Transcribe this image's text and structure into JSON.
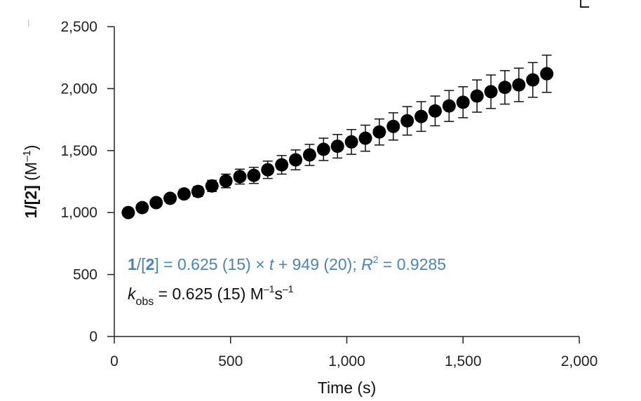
{
  "chart_data": {
    "type": "scatter",
    "xlabel": "Time (s)",
    "ylabel": {
      "bold": "1/[2]",
      "unit": " (M",
      "exp": "–1",
      "close": ")"
    },
    "xlim": [
      0,
      2000
    ],
    "ylim": [
      0,
      2500
    ],
    "x_ticks": [
      0,
      500,
      1000,
      1500,
      2000
    ],
    "x_tick_labels": [
      "0",
      "500",
      "1,000",
      "1,500",
      "2,000"
    ],
    "y_ticks": [
      0,
      500,
      1000,
      1500,
      2000,
      2500
    ],
    "y_tick_labels": [
      "0",
      "500",
      "1,000",
      "1,500",
      "2,000",
      "2,500"
    ],
    "grid": false,
    "marker_color": "#000000",
    "series": [
      {
        "x": [
          60,
          120,
          180,
          240,
          300,
          360,
          420,
          480,
          540,
          600,
          660,
          720,
          780,
          840,
          900,
          960,
          1020,
          1080,
          1140,
          1200,
          1260,
          1320,
          1380,
          1440,
          1500,
          1560,
          1620,
          1680,
          1740,
          1800,
          1860
        ],
        "y": [
          1000,
          1040,
          1080,
          1115,
          1150,
          1170,
          1215,
          1255,
          1290,
          1300,
          1345,
          1385,
          1425,
          1465,
          1510,
          1535,
          1570,
          1600,
          1650,
          1695,
          1740,
          1775,
          1820,
          1860,
          1890,
          1940,
          1975,
          2010,
          2030,
          2070,
          2120
        ],
        "err": [
          15,
          20,
          25,
          30,
          35,
          40,
          45,
          55,
          60,
          65,
          70,
          75,
          80,
          85,
          90,
          95,
          100,
          105,
          105,
          110,
          115,
          120,
          120,
          125,
          125,
          130,
          135,
          135,
          135,
          140,
          150
        ]
      }
    ],
    "annotations": {
      "fit_color": "#4a86b4",
      "fit": {
        "lhs_bold_1": "1",
        "lhs_mid": "/[",
        "lhs_bold_2": "2",
        "lhs_end": "]",
        "rest_1": " = 0.625 (15) × ",
        "var_t": "t",
        "rest_2": " + 949 (20); ",
        "var_R": "R",
        "sup_2": "2",
        "rest_3": " = 0.9285"
      },
      "kobs": {
        "k": "k",
        "sub": "obs",
        "rest_1": " = 0.625 (15) M",
        "sup_1": "–1",
        "rest_2": "s",
        "sup_2": "–1"
      }
    }
  }
}
